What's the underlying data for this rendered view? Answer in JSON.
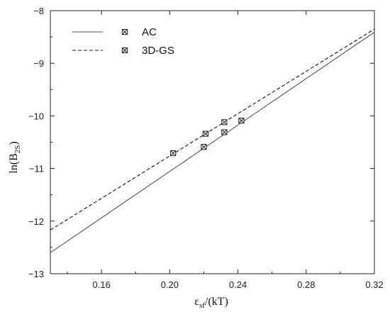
{
  "chart_data": {
    "type": "line",
    "xlabel": {
      "main": "ε",
      "sub": "sf",
      "rest": "/(kT)"
    },
    "ylabel": {
      "main": "ln(B",
      "sub": "2S",
      "rest": ")"
    },
    "xlim": [
      0.13,
      0.32
    ],
    "ylim": [
      -13,
      -8
    ],
    "x_ticks": [
      0.16,
      0.2,
      0.24,
      0.28,
      0.32
    ],
    "x_tick_labels": [
      "0.16",
      "0.20",
      "0.24",
      "0.28",
      "0.32"
    ],
    "y_ticks": [
      -13,
      -12,
      -11,
      -10,
      -9,
      -8
    ],
    "y_tick_labels": [
      "−13",
      "−12",
      "−11",
      "−10",
      "−9",
      "−8"
    ],
    "grid": false,
    "legend_position": "top-left",
    "series": [
      {
        "name": "AC",
        "line_style": "solid",
        "color": "#555555",
        "line": [
          [
            0.13,
            -12.6
          ],
          [
            0.32,
            -8.41
          ]
        ],
        "points": [
          [
            0.22,
            -10.59
          ],
          [
            0.232,
            -10.31
          ],
          [
            0.242,
            -10.09
          ]
        ]
      },
      {
        "name": "3D-GS",
        "line_style": "dashed",
        "color": "#111111",
        "line": [
          [
            0.13,
            -12.17
          ],
          [
            0.32,
            -8.35
          ]
        ],
        "points": [
          [
            0.202,
            -10.71
          ],
          [
            0.221,
            -10.34
          ],
          [
            0.232,
            -10.12
          ]
        ]
      }
    ]
  }
}
